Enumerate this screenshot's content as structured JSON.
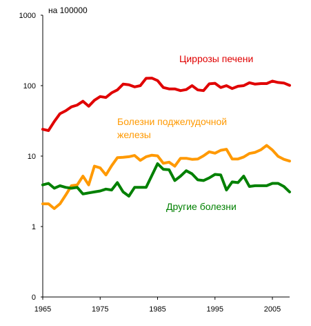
{
  "chart_data": {
    "type": "line",
    "title": "",
    "unit_label": "на 100000",
    "xlabel": "",
    "ylabel": "",
    "y_scale": "log",
    "xlim": [
      1965,
      2008
    ],
    "ylim": [
      0.1,
      1000
    ],
    "x_ticks": [
      1965,
      1975,
      1985,
      1995,
      2005
    ],
    "y_ticks": [
      {
        "value": 0.1,
        "label": "0"
      },
      {
        "value": 1,
        "label": "1"
      },
      {
        "value": 10,
        "label": "10"
      },
      {
        "value": 100,
        "label": "100"
      },
      {
        "value": 1000,
        "label": "1000"
      }
    ],
    "grid": false,
    "legend": "inline labels",
    "x": [
      1965,
      1966,
      1967,
      1968,
      1969,
      1970,
      1971,
      1972,
      1973,
      1974,
      1975,
      1976,
      1977,
      1978,
      1979,
      1980,
      1981,
      1982,
      1983,
      1984,
      1985,
      1986,
      1987,
      1988,
      1989,
      1990,
      1991,
      1992,
      1993,
      1994,
      1995,
      1996,
      1997,
      1998,
      1999,
      2000,
      2001,
      2002,
      2003,
      2004,
      2005,
      2006,
      2007,
      2008
    ],
    "series": [
      {
        "name": "Циррозы печени",
        "label_lines": [
          "Циррозы печени"
        ],
        "color": "#e00000",
        "values": [
          24,
          23,
          31,
          40,
          44,
          50,
          53,
          60,
          51,
          62,
          70,
          68,
          79,
          87,
          105,
          103,
          96,
          100,
          127,
          128,
          118,
          94,
          90,
          90,
          85,
          88,
          100,
          87,
          85,
          106,
          108,
          94,
          100,
          91,
          98,
          100,
          110,
          105,
          107,
          107,
          116,
          111,
          109,
          101
        ]
      },
      {
        "name": "Болезни поджелудочной железы",
        "label_lines": [
          "Болезни поджелудочной",
          "железы"
        ],
        "color": "#ff9900",
        "values": [
          2.1,
          2.1,
          1.8,
          2.1,
          2.8,
          3.8,
          3.9,
          5.2,
          3.9,
          7.2,
          6.8,
          5.4,
          7.3,
          9.5,
          9.6,
          9.8,
          10.2,
          8.7,
          9.8,
          10.3,
          10.1,
          7.9,
          8.2,
          7.2,
          9.3,
          9.3,
          9.0,
          9.1,
          10.1,
          11.5,
          11.0,
          12.1,
          12.5,
          9.1,
          9.1,
          9.7,
          10.9,
          11.3,
          12.3,
          14.2,
          12.2,
          9.9,
          9.0,
          8.5
        ]
      },
      {
        "name": "Другие болезни",
        "label_lines": [
          "Другие болезни"
        ],
        "color": "#008000",
        "values": [
          3.9,
          4.1,
          3.5,
          3.8,
          3.6,
          3.5,
          3.6,
          2.9,
          3.0,
          3.1,
          3.2,
          3.4,
          3.3,
          4.2,
          3.1,
          2.7,
          3.6,
          3.6,
          3.6,
          5.3,
          7.8,
          6.5,
          6.4,
          4.5,
          5.2,
          6.2,
          5.6,
          4.6,
          4.5,
          4.9,
          5.5,
          5.4,
          3.3,
          4.3,
          4.2,
          5.2,
          3.7,
          3.8,
          3.8,
          3.8,
          4.1,
          4.1,
          3.7,
          3.1
        ]
      }
    ]
  }
}
